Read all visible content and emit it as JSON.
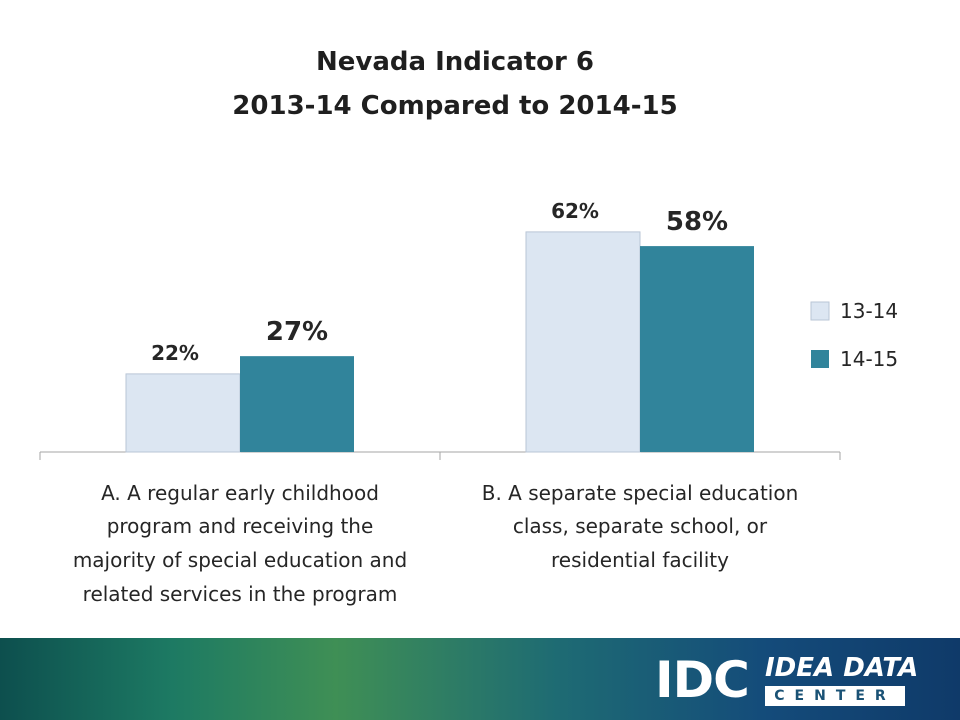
{
  "chart_data": {
    "type": "bar",
    "title_lines": [
      "Nevada Indicator 6",
      "2013-14 Compared to 2014-15"
    ],
    "categories": [
      [
        "A. A regular early childhood",
        "program and receiving the",
        "majority of special education and",
        "related services in the program"
      ],
      [
        "B. A separate special education",
        "class, separate school, or",
        "residential facility"
      ]
    ],
    "series": [
      {
        "name": "13-14",
        "values": [
          22,
          62
        ],
        "labels": [
          "22%",
          "62%"
        ],
        "color": "#dce6f2"
      },
      {
        "name": "14-15",
        "values": [
          27,
          58
        ],
        "labels": [
          "27%",
          "58%"
        ],
        "color": "#31849b"
      }
    ],
    "ylim": [
      0,
      70
    ],
    "grid": false,
    "legend": "right"
  },
  "footer": {
    "logo_mark": "IDC",
    "logo_line1": "IDEA DATA",
    "logo_line2": "CENTER"
  }
}
